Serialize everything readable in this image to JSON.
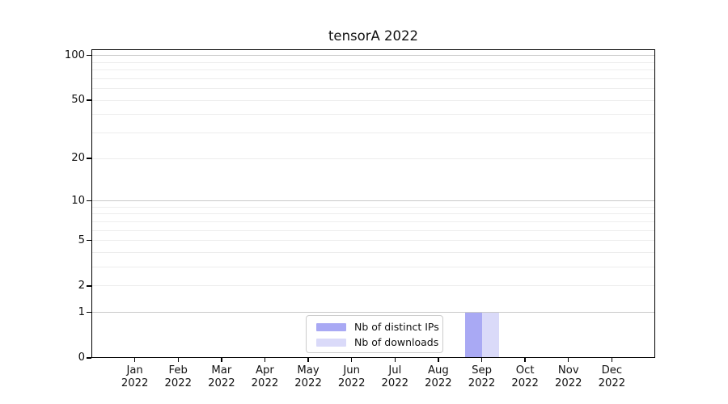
{
  "chart_data": {
    "type": "bar",
    "title": "tensorA 2022",
    "categories": [
      {
        "month": "Jan",
        "year": "2022"
      },
      {
        "month": "Feb",
        "year": "2022"
      },
      {
        "month": "Mar",
        "year": "2022"
      },
      {
        "month": "Apr",
        "year": "2022"
      },
      {
        "month": "May",
        "year": "2022"
      },
      {
        "month": "Jun",
        "year": "2022"
      },
      {
        "month": "Jul",
        "year": "2022"
      },
      {
        "month": "Aug",
        "year": "2022"
      },
      {
        "month": "Sep",
        "year": "2022"
      },
      {
        "month": "Oct",
        "year": "2022"
      },
      {
        "month": "Nov",
        "year": "2022"
      },
      {
        "month": "Dec",
        "year": "2022"
      }
    ],
    "series": [
      {
        "name": "Nb of distinct IPs",
        "color": "#a9a9f4",
        "values": [
          0,
          0,
          0,
          0,
          0,
          0,
          0,
          0,
          1,
          0,
          0,
          0
        ]
      },
      {
        "name": "Nb of downloads",
        "color": "#dadaf9",
        "values": [
          0,
          0,
          0,
          0,
          0,
          0,
          0,
          0,
          1,
          0,
          0,
          0
        ]
      }
    ],
    "y_axis": {
      "scale": "log1p",
      "tick_values": [
        0,
        1,
        2,
        5,
        10,
        20,
        50,
        100
      ],
      "tick_labels": [
        "0",
        "1",
        "2",
        "5",
        "10",
        "20",
        "50",
        "100"
      ],
      "major_grid_values": [
        1,
        10,
        100
      ],
      "minor_grid_values": [
        2,
        3,
        4,
        5,
        6,
        7,
        8,
        9,
        20,
        30,
        40,
        50,
        60,
        70,
        80,
        90
      ],
      "ylim": [
        0,
        110
      ]
    },
    "legend_position": "lower center",
    "grid": true,
    "colors": {
      "major_grid": "#c9c9c9",
      "minor_grid": "#ededed",
      "spine": "#000000",
      "text": "#111111",
      "legend_border": "#cccccc",
      "background": "#ffffff"
    }
  }
}
